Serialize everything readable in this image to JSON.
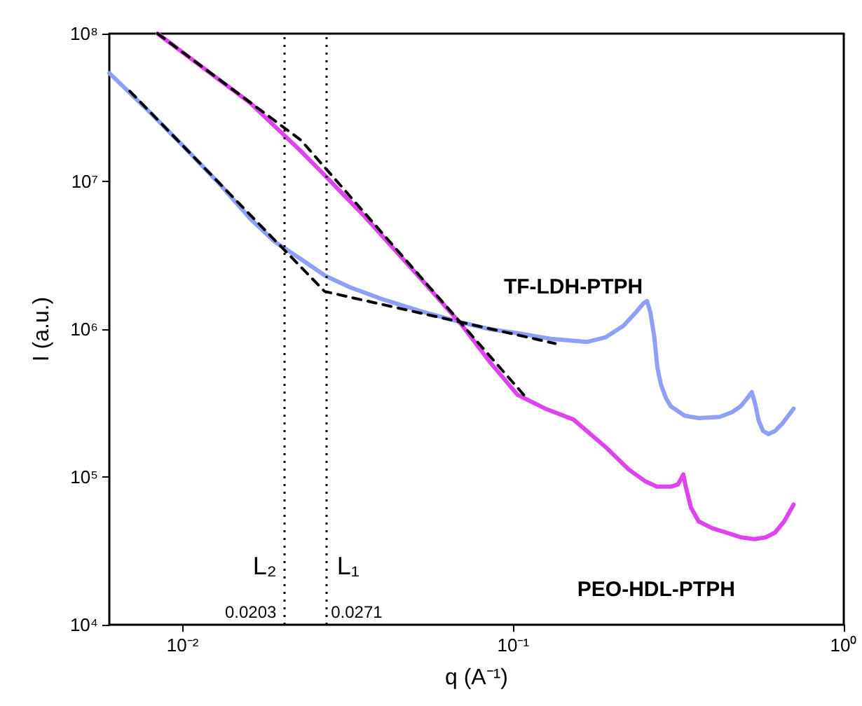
{
  "chart_data": {
    "type": "line",
    "xlabel": "q (A⁻¹)",
    "ylabel": "I (a.u.)",
    "log": "xy",
    "xlim": [
      0.006,
      1
    ],
    "xticks": [
      {
        "value": 0.01,
        "label": "10⁻²"
      },
      {
        "value": 0.1,
        "label": "10⁻¹"
      },
      {
        "value": 1,
        "label": "10⁰"
      }
    ],
    "ylim": [
      10000,
      100000000
    ],
    "yticks": [
      {
        "value": 10000,
        "label": "10⁴"
      },
      {
        "value": 100000,
        "label": "10⁵"
      },
      {
        "value": 1000000,
        "label": "10⁶"
      },
      {
        "value": 10000000,
        "label": "10⁷"
      },
      {
        "value": 100000000,
        "label": "10⁸"
      }
    ],
    "grid": false,
    "legend": false,
    "marker": "none",
    "series": [
      {
        "name": "TF-LDH-PTPH",
        "color": "#8f9ff7",
        "x": [
          0.006,
          0.008,
          0.01,
          0.013,
          0.016,
          0.019,
          0.0228,
          0.027,
          0.0321,
          0.04,
          0.0521,
          0.0698,
          0.085,
          0.103,
          0.13,
          0.1676,
          0.19,
          0.215,
          0.235,
          0.248,
          0.254,
          0.26,
          0.267,
          0.273,
          0.28,
          0.29,
          0.3,
          0.33,
          0.364,
          0.421,
          0.46,
          0.487,
          0.51,
          0.527,
          0.54,
          0.553,
          0.57,
          0.592,
          0.62,
          0.652,
          0.705
        ],
        "values": [
          54000000,
          29000000,
          17500000,
          9500000,
          5600000,
          3900000,
          2980000,
          2300000,
          1920000,
          1600000,
          1330000,
          1110000,
          1000000,
          940000,
          860000,
          820000,
          880000,
          1050000,
          1300000,
          1500000,
          1550000,
          1300000,
          897000,
          550000,
          420000,
          340000,
          300000,
          260000,
          250000,
          255000,
          275000,
          300000,
          340000,
          375000,
          310000,
          240000,
          205000,
          195000,
          205000,
          230000,
          290000
        ]
      },
      {
        "name": "PEO-HDL-PTPH",
        "color": "#dd44ee",
        "x": [
          0.0084,
          0.012,
          0.016,
          0.0228,
          0.0269,
          0.035,
          0.0521,
          0.0698,
          0.085,
          0.103,
          0.125,
          0.152,
          0.19,
          0.224,
          0.25,
          0.272,
          0.3,
          0.315,
          0.327,
          0.333,
          0.345,
          0.364,
          0.4,
          0.442,
          0.49,
          0.537,
          0.58,
          0.619,
          0.66,
          0.705
        ],
        "values": [
          100000000,
          55000000,
          34000000,
          16000000,
          11000000,
          6000000,
          2240000,
          1070000,
          600000,
          360000,
          290000,
          245000,
          160000,
          112000,
          94000,
          86000,
          86000,
          89000,
          104000,
          85000,
          62000,
          50000,
          45000,
          42000,
          39000,
          38000,
          39000,
          42000,
          50000,
          65000
        ]
      },
      {
        "color": "#000000",
        "line_style": "dashed",
        "x": [
          0.0084,
          0.0228,
          0.11
        ],
        "values": [
          100000000,
          19000000,
          340000
        ]
      },
      {
        "color": "#000000",
        "line_style": "dashed",
        "x": [
          0.00692,
          0.0269,
          0.134
        ],
        "values": [
          40800000,
          1800000,
          800000
        ]
      }
    ],
    "ref_lines": [
      {
        "axis": "x",
        "value": 0.0203,
        "label": "L₂",
        "color": "#000000",
        "line_style": "dotted"
      },
      {
        "axis": "x",
        "value": 0.0271,
        "label": "L₁",
        "color": "#000000",
        "line_style": "dotted"
      }
    ],
    "annotations": [
      "0.0203",
      "0.0271"
    ]
  }
}
